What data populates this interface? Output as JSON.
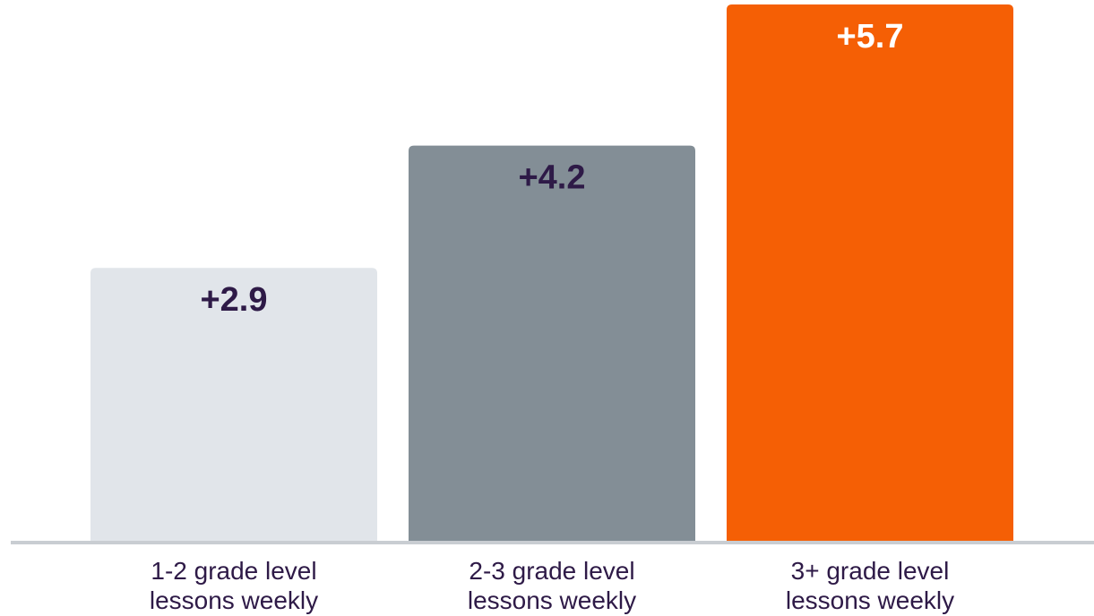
{
  "chart_data": {
    "type": "bar",
    "title": "",
    "xlabel": "",
    "ylabel": "",
    "categories": [
      [
        "1-2 grade level",
        "lessons weekly"
      ],
      [
        "2-3 grade level",
        "lessons weekly"
      ],
      [
        "3+ grade level",
        "lessons weekly"
      ]
    ],
    "values": [
      2.9,
      4.2,
      5.7
    ],
    "value_labels": [
      "+2.9",
      "+4.2",
      "+5.7"
    ],
    "ylim": [
      0,
      5.7
    ],
    "grid": false,
    "legend": "none",
    "bar_colors": [
      "#e1e5ea",
      "#838e96",
      "#f55f05"
    ],
    "value_label_colors": [
      "#2e1a47",
      "#2e1a47",
      "#ffffff"
    ],
    "baseline_color": "#c9cdd2"
  }
}
